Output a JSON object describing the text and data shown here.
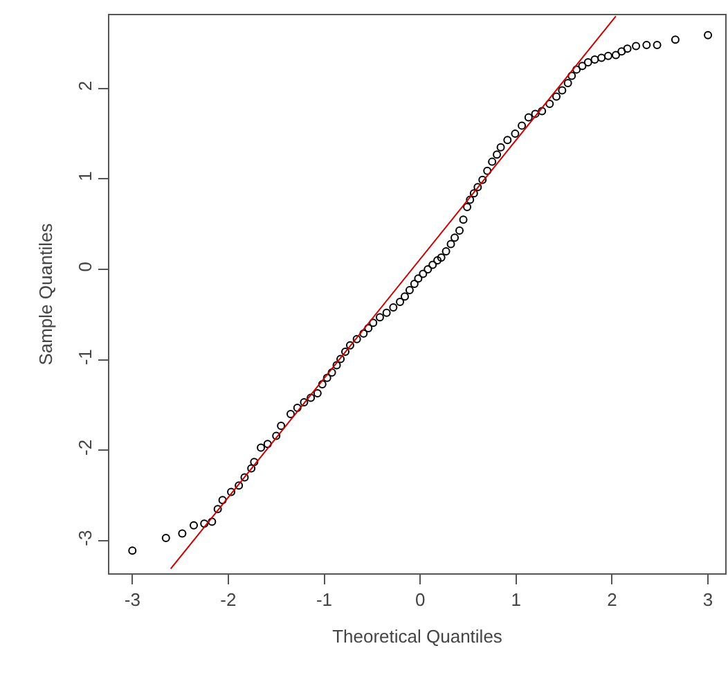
{
  "chart_data": {
    "type": "scatter",
    "xlabel": "Theoretical Quantiles",
    "ylabel": "Sample Quantiles",
    "xlim": [
      -3.24,
      3.18
    ],
    "ylim": [
      -3.36,
      2.81
    ],
    "xticks": [
      -3,
      -2,
      -1,
      0,
      1,
      2,
      3
    ],
    "yticks": [
      -3,
      -2,
      -1,
      0,
      1,
      2
    ],
    "marker": "circle",
    "series": [
      {
        "color": "#000000",
        "x": [
          -3.0,
          -2.65,
          -2.48,
          -2.36,
          -2.25,
          -2.17,
          -2.11,
          -2.06,
          -1.97,
          -1.89,
          -1.83,
          -1.76,
          -1.73,
          -1.66,
          -1.59,
          -1.5,
          -1.45,
          -1.35,
          -1.28,
          -1.21,
          -1.14,
          -1.07,
          -1.02,
          -0.97,
          -0.92,
          -0.87,
          -0.83,
          -0.78,
          -0.73,
          -0.66,
          -0.59,
          -0.54,
          -0.49,
          -0.42,
          -0.35,
          -0.28,
          -0.21,
          -0.16,
          -0.11,
          -0.06,
          -0.02,
          0.03,
          0.08,
          0.13,
          0.18,
          0.22,
          0.27,
          0.32,
          0.36,
          0.41,
          0.45,
          0.49,
          0.52,
          0.56,
          0.6,
          0.65,
          0.7,
          0.75,
          0.8,
          0.84,
          0.91,
          0.99,
          1.06,
          1.13,
          1.2,
          1.27,
          1.35,
          1.42,
          1.48,
          1.54,
          1.58,
          1.63,
          1.69,
          1.75,
          1.82,
          1.89,
          1.96,
          2.04,
          2.1,
          2.16,
          2.25,
          2.36,
          2.47,
          2.66,
          3.0
        ],
        "values": [
          -3.11,
          -2.97,
          -2.92,
          -2.83,
          -2.81,
          -2.79,
          -2.65,
          -2.55,
          -2.46,
          -2.39,
          -2.3,
          -2.2,
          -2.13,
          -1.97,
          -1.93,
          -1.84,
          -1.73,
          -1.6,
          -1.53,
          -1.47,
          -1.42,
          -1.37,
          -1.27,
          -1.2,
          -1.14,
          -1.06,
          -0.99,
          -0.91,
          -0.84,
          -0.77,
          -0.71,
          -0.65,
          -0.59,
          -0.53,
          -0.48,
          -0.42,
          -0.36,
          -0.3,
          -0.23,
          -0.16,
          -0.1,
          -0.05,
          0.0,
          0.05,
          0.1,
          0.13,
          0.2,
          0.28,
          0.35,
          0.43,
          0.55,
          0.69,
          0.77,
          0.84,
          0.91,
          0.99,
          1.09,
          1.19,
          1.27,
          1.35,
          1.43,
          1.5,
          1.59,
          1.68,
          1.72,
          1.75,
          1.83,
          1.91,
          1.98,
          2.06,
          2.14,
          2.21,
          2.25,
          2.29,
          2.32,
          2.34,
          2.36,
          2.37,
          2.41,
          2.44,
          2.47,
          2.48,
          2.48,
          2.54,
          2.59
        ]
      },
      {
        "type": "line",
        "color": "#cc0000",
        "marker": "none",
        "line_style": "solid",
        "x": [
          -2.6,
          2.04
        ],
        "values": [
          -3.31,
          2.8
        ]
      }
    ]
  }
}
